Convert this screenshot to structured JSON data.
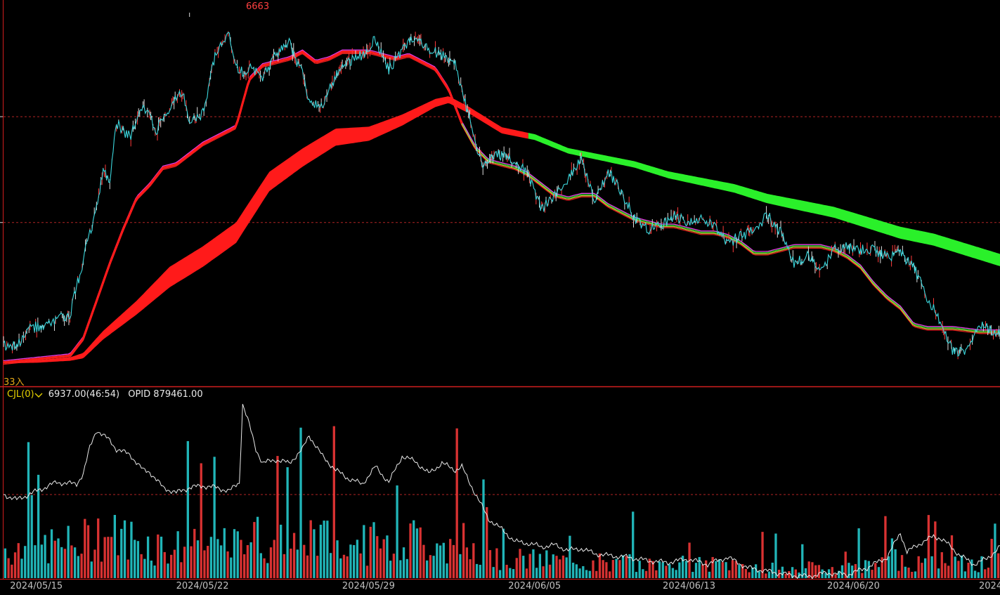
{
  "indicator": {
    "name": "CJL(0)",
    "value": "6937.00(46:54)",
    "opid_label": "OPID",
    "opid_value": "879461.00"
  },
  "annotations": {
    "high_label": "6663",
    "low_label": "33入"
  },
  "colors": {
    "background": "#000000",
    "price_line": "#3bd6dc",
    "price_up": "#ff3a3a",
    "volume_up": "#ff3b3b",
    "volume_down": "#27d5d8",
    "band_up": "#ff1a1a",
    "band_down": "#2af02a",
    "grid": "#b32424",
    "open_interest": "#e8e8e8",
    "panel_divider": "#d21e1e",
    "high_label": "#ff4040",
    "low_label": "#e6a817"
  },
  "chart_data": {
    "type": "line",
    "x_ticks": [
      "2024/05/15",
      "2024/05/22",
      "2024/05/29",
      "2024/06/05",
      "2024/06/13",
      "2024/06/20",
      "2024"
    ],
    "price": {
      "x": [
        0,
        4,
        8,
        12,
        16,
        20,
        24,
        28,
        30,
        32,
        34,
        38,
        42,
        46,
        50,
        52,
        54,
        56,
        60,
        64,
        68,
        70,
        72,
        74,
        78,
        82,
        86,
        88,
        90,
        92,
        96,
        100,
        104,
        108,
        112,
        116,
        120,
        122,
        124,
        128,
        132,
        136,
        140,
        144,
        148,
        152,
        156,
        158,
        162,
        166,
        170,
        174,
        178,
        182,
        186,
        190,
        194,
        198,
        202,
        206,
        210,
        214,
        218,
        222,
        226,
        230,
        234,
        238,
        242,
        246,
        250,
        254,
        258,
        262,
        266,
        270,
        274,
        278,
        282,
        286,
        290,
        294,
        298,
        300
      ],
      "values": [
        5.0,
        4.8,
        10.0,
        11.0,
        12.5,
        14.0,
        30.0,
        45.0,
        56.0,
        54.0,
        70.0,
        66.0,
        75.0,
        68.0,
        74.0,
        78.0,
        80.0,
        70.0,
        73.0,
        91.0,
        96.0,
        87.0,
        85.0,
        86.0,
        84.0,
        90.0,
        94.0,
        88.0,
        86.0,
        76.0,
        75.0,
        84.0,
        88.0,
        90.0,
        95.0,
        86.0,
        91.0,
        94.0,
        96.0,
        92.0,
        90.0,
        88.0,
        72.0,
        58.0,
        61.0,
        60.0,
        57.0,
        55.0,
        45.0,
        49.0,
        54.0,
        60.0,
        47.0,
        56.0,
        50.0,
        42.0,
        39.0,
        40.0,
        43.0,
        41.0,
        42.0,
        40.0,
        35.0,
        37.0,
        39.0,
        43.0,
        38.0,
        29.0,
        31.0,
        27.0,
        33.0,
        34.0,
        33.0,
        33.0,
        31.0,
        32.0,
        28.0,
        19.0,
        12.0,
        3.0,
        3.0,
        11.0,
        9.0,
        9.0
      ]
    },
    "ma_fast": {
      "x": [
        0,
        10,
        20,
        24,
        28,
        32,
        36,
        40,
        44,
        48,
        52,
        56,
        60,
        64,
        70,
        74,
        78,
        82,
        86,
        90,
        94,
        98,
        102,
        106,
        110,
        114,
        118,
        122,
        126,
        130,
        134,
        138,
        142,
        146,
        150,
        154,
        158,
        162,
        166,
        170,
        174,
        178,
        182,
        186,
        190,
        194,
        198,
        202,
        206,
        210,
        214,
        218,
        222,
        226,
        230,
        234,
        238,
        242,
        246,
        250,
        254,
        258,
        262,
        266,
        270,
        274,
        278,
        282,
        286,
        290,
        294,
        300
      ],
      "values": [
        0.0,
        1.0,
        2.0,
        7.0,
        18.0,
        29.0,
        39.0,
        48.0,
        52.0,
        57.0,
        58.0,
        61.0,
        64.0,
        66.0,
        69.0,
        83.0,
        87.0,
        88.0,
        89.0,
        91.0,
        88.0,
        89.0,
        91.0,
        91.0,
        91.0,
        90.0,
        89.0,
        90.0,
        88.0,
        86.0,
        80.0,
        70.0,
        63.0,
        59.0,
        58.0,
        57.0,
        55.0,
        52.0,
        49.0,
        48.0,
        49.0,
        49.0,
        46.0,
        44.0,
        42.0,
        41.0,
        40.0,
        40.0,
        39.0,
        38.0,
        38.0,
        37.0,
        35.0,
        32.0,
        32.0,
        33.0,
        34.0,
        34.0,
        34.0,
        33.0,
        31.0,
        28.0,
        23.0,
        19.0,
        16.0,
        11.0,
        10.0,
        10.0,
        10.0,
        9.5,
        9.0,
        9.0
      ]
    },
    "ma_fast_width": {
      "x": [
        0,
        300
      ],
      "values": [
        0.3,
        0.3
      ]
    },
    "ma_slow": {
      "x": [
        0,
        10,
        20,
        24,
        30,
        40,
        50,
        60,
        70,
        72,
        80,
        90,
        100,
        110,
        120,
        130,
        134,
        140,
        150,
        160,
        170,
        180,
        190,
        200,
        210,
        220,
        230,
        240,
        250,
        260,
        270,
        280,
        290,
        300
      ],
      "values": [
        0.0,
        0.3,
        1.0,
        2.0,
        8.0,
        16.0,
        25.0,
        31.0,
        38.0,
        41.0,
        53.0,
        60.0,
        66.0,
        67.0,
        71.0,
        76.0,
        77.0,
        74.0,
        68.0,
        66.0,
        62.0,
        60.0,
        58.0,
        55.0,
        53.0,
        51.0,
        48.0,
        46.0,
        44.0,
        41.0,
        38.0,
        36.0,
        33.0,
        30.0
      ]
    },
    "ma_slow_width": {
      "x": [
        0,
        20,
        40,
        50,
        70,
        100,
        134,
        150,
        170,
        200,
        240,
        270,
        300
      ],
      "values": [
        0.5,
        1.0,
        4.0,
        6.0,
        6.0,
        5.0,
        2.0,
        1.8,
        1.6,
        2.0,
        3.0,
        3.5,
        3.6
      ]
    },
    "band_color_switch_x": 158,
    "volume": {
      "count": 300,
      "ylim": [
        0,
        100
      ],
      "seed": 7,
      "price_ylim": [
        0,
        100
      ]
    },
    "open_interest": {
      "x": [
        0,
        4,
        10,
        16,
        22,
        24,
        26,
        28,
        30,
        32,
        34,
        38,
        42,
        44,
        48,
        52,
        56,
        60,
        64,
        68,
        71,
        72,
        74,
        76,
        78,
        82,
        86,
        90,
        92,
        94,
        96,
        100,
        104,
        108,
        112,
        116,
        120,
        124,
        128,
        132,
        136,
        138,
        140,
        146,
        150,
        154,
        158,
        162,
        166,
        170,
        174,
        178,
        182,
        188,
        194,
        200,
        206,
        212,
        218,
        224,
        230,
        236,
        242,
        248,
        254,
        260,
        266,
        270,
        272,
        276,
        280,
        282,
        284,
        288,
        292,
        296,
        300
      ],
      "values": [
        48.0,
        45.0,
        50.0,
        55.0,
        54.0,
        60.0,
        75.0,
        85.0,
        82.0,
        79.0,
        74.0,
        71.0,
        62.0,
        61.0,
        52.0,
        49.0,
        52.0,
        53.0,
        52.0,
        50.0,
        55.0,
        100.0,
        88.0,
        74.0,
        66.0,
        68.0,
        66.0,
        74.0,
        82.0,
        76.0,
        70.0,
        62.0,
        57.0,
        54.0,
        64.0,
        55.0,
        70.0,
        67.0,
        60.0,
        66.0,
        62.0,
        64.0,
        56.0,
        34.0,
        28.0,
        21.0,
        20.0,
        18.0,
        19.0,
        16.0,
        17.0,
        14.0,
        13.0,
        12.0,
        10.0,
        9.0,
        11.0,
        8.0,
        12.0,
        6.0,
        4.0,
        2.0,
        1.0,
        3.0,
        2.0,
        6.0,
        12.0,
        26.0,
        15.0,
        20.0,
        24.0,
        23.0,
        20.0,
        13.0,
        8.0,
        11.0,
        18.0
      ]
    },
    "open_interest_ylim": [
      0,
      100
    ],
    "oi_grid_level": 48,
    "price_grid_levels": [
      72,
      41
    ],
    "x_range": [
      0,
      300
    ]
  }
}
